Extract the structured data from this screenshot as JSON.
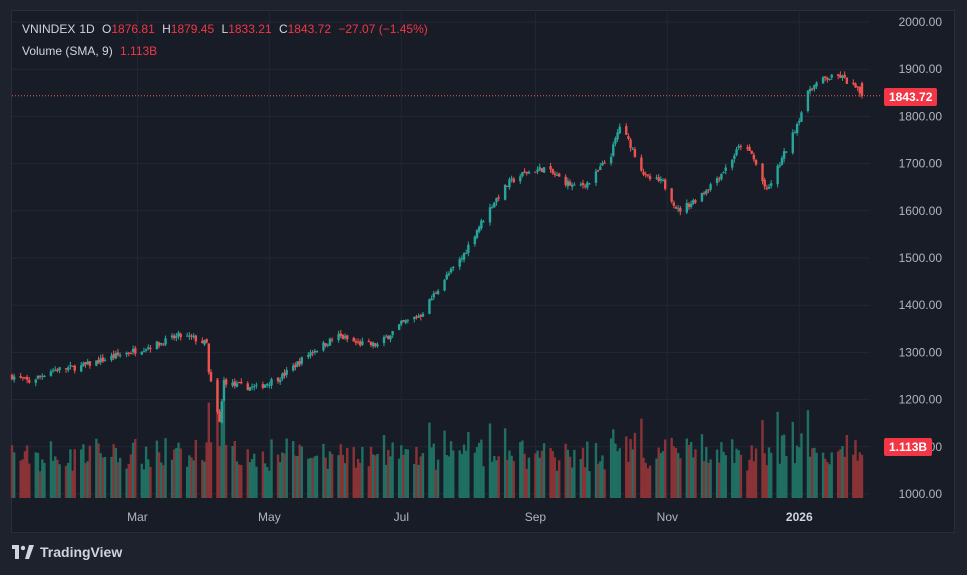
{
  "legend": {
    "symbol": "VNINDEX",
    "interval": "1D",
    "o_label": "O",
    "o_value": "1876.81",
    "h_label": "H",
    "h_value": "1879.45",
    "l_label": "L",
    "l_value": "1833.21",
    "c_label": "C",
    "c_value": "1843.72",
    "change": "−27.07 (−1.45%)",
    "volume_label": "Volume (SMA, 9)",
    "volume_value": "1.113B"
  },
  "last_price_tag": "1843.72",
  "volume_tag": "1.113B",
  "brand": "TradingView",
  "colors": {
    "up": "#26a69a",
    "down": "#ef5350",
    "vol_up": "#1f6f63",
    "vol_down": "#8a3336",
    "accent": "#f23645"
  },
  "chart_data": {
    "type": "candlestick",
    "title": "",
    "y_ticks": [
      "2000.00",
      "1900.00",
      "1800.00",
      "1700.00",
      "1600.00",
      "1500.00",
      "1400.00",
      "1300.00",
      "1200.00",
      "1100.00",
      "1000.00"
    ],
    "ylim": [
      1000,
      2000
    ],
    "x_ticks": [
      "Mar",
      "May",
      "Jul",
      "Sep",
      "Nov",
      "2026"
    ],
    "x_tick_dates": [
      "2025-03-01",
      "2025-05-01",
      "2025-07-01",
      "2025-09-01",
      "2025-11-01",
      "2026-01-01"
    ],
    "x_range": [
      "2025-01-02",
      "2026-01-30"
    ],
    "last_close": 1843.72,
    "close_path": [
      [
        "2025-01-02",
        1250
      ],
      [
        "2025-01-10",
        1238
      ],
      [
        "2025-01-20",
        1262
      ],
      [
        "2025-02-03",
        1270
      ],
      [
        "2025-02-17",
        1290
      ],
      [
        "2025-03-03",
        1308
      ],
      [
        "2025-03-12",
        1320
      ],
      [
        "2025-03-20",
        1335
      ],
      [
        "2025-03-27",
        1330
      ],
      [
        "2025-04-02",
        1318
      ],
      [
        "2025-04-03",
        1255
      ],
      [
        "2025-04-08",
        1150
      ],
      [
        "2025-04-10",
        1240
      ],
      [
        "2025-04-15",
        1230
      ],
      [
        "2025-04-25",
        1225
      ],
      [
        "2025-05-07",
        1250
      ],
      [
        "2025-05-20",
        1300
      ],
      [
        "2025-06-02",
        1335
      ],
      [
        "2025-06-10",
        1320
      ],
      [
        "2025-06-20",
        1315
      ],
      [
        "2025-07-01",
        1360
      ],
      [
        "2025-07-10",
        1380
      ],
      [
        "2025-07-20",
        1450
      ],
      [
        "2025-07-29",
        1500
      ],
      [
        "2025-08-05",
        1560
      ],
      [
        "2025-08-13",
        1620
      ],
      [
        "2025-08-20",
        1660
      ],
      [
        "2025-08-27",
        1680
      ],
      [
        "2025-09-05",
        1690
      ],
      [
        "2025-09-12",
        1670
      ],
      [
        "2025-09-19",
        1650
      ],
      [
        "2025-09-26",
        1660
      ],
      [
        "2025-10-06",
        1720
      ],
      [
        "2025-10-10",
        1780
      ],
      [
        "2025-10-15",
        1740
      ],
      [
        "2025-10-22",
        1670
      ],
      [
        "2025-10-30",
        1660
      ],
      [
        "2025-11-06",
        1600
      ],
      [
        "2025-11-13",
        1620
      ],
      [
        "2025-11-20",
        1650
      ],
      [
        "2025-11-28",
        1690
      ],
      [
        "2025-12-05",
        1740
      ],
      [
        "2025-12-10",
        1720
      ],
      [
        "2025-12-17",
        1640
      ],
      [
        "2025-12-22",
        1690
      ],
      [
        "2025-12-29",
        1760
      ],
      [
        "2026-01-06",
        1860
      ],
      [
        "2026-01-13",
        1880
      ],
      [
        "2026-01-20",
        1885
      ],
      [
        "2026-01-27",
        1860
      ],
      [
        "2026-01-30",
        1843.72
      ]
    ]
  }
}
